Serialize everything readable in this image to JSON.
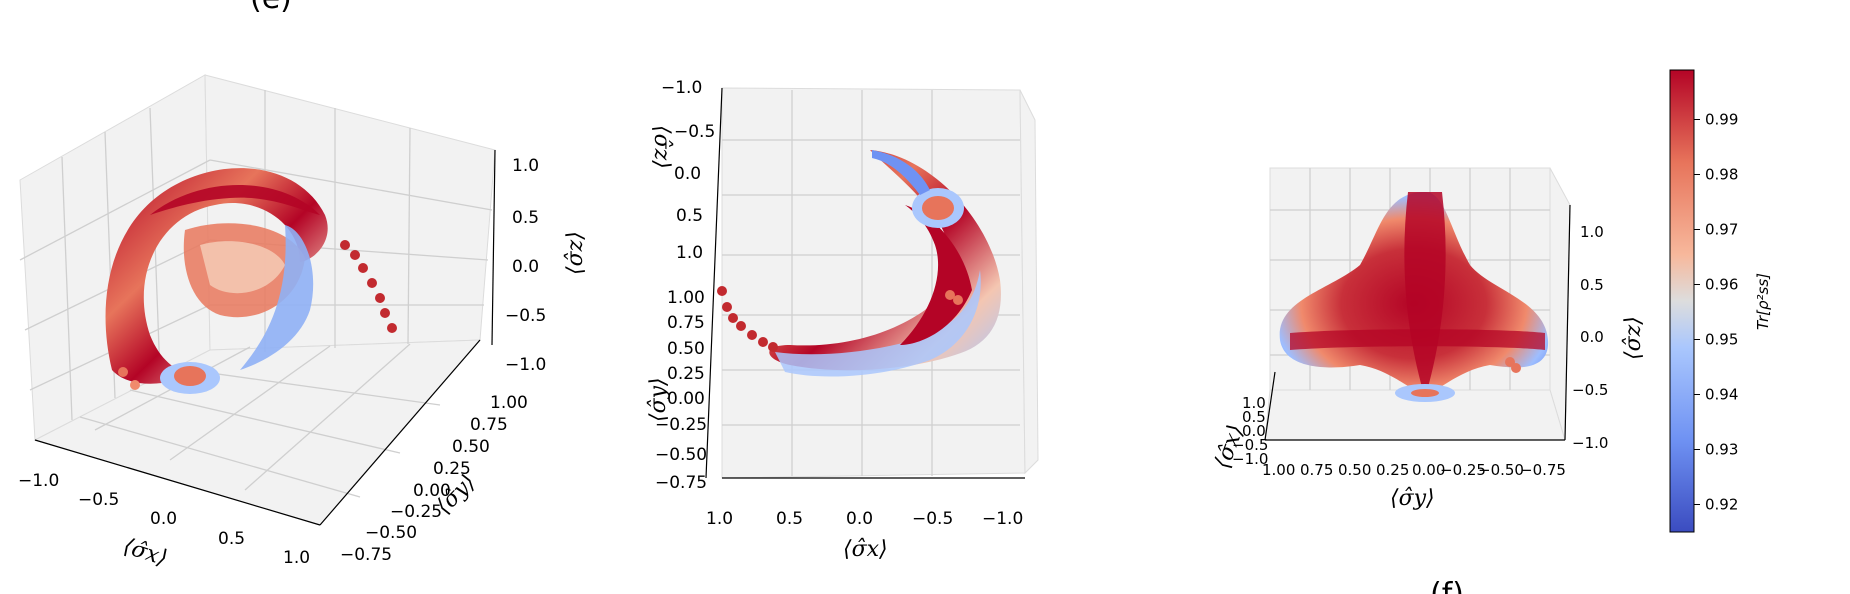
{
  "figure": {
    "panel_labels": [
      "(e)",
      "(f)"
    ]
  },
  "chart_data": [
    {
      "type": "scatter",
      "view": "3d-perspective",
      "xlabel": "⟨σ̂x⟩",
      "ylabel": "⟨σ̂y⟩",
      "zlabel": "⟨σ̂z⟩",
      "xticks": [
        "−1.0",
        "−0.5",
        "0.0",
        "0.5",
        "1.0"
      ],
      "yticks": [
        "1.00",
        "0.75",
        "0.50",
        "0.25",
        "0.00",
        "−0.25",
        "−0.50",
        "−0.75"
      ],
      "zticks": [
        "1.0",
        "0.5",
        "0.0",
        "−0.5",
        "−1.0"
      ],
      "xlim": [
        -1.0,
        1.0
      ],
      "ylim": [
        -0.75,
        1.0
      ],
      "zlim": [
        -1.0,
        1.0
      ],
      "grid": true
    },
    {
      "type": "scatter",
      "view": "3d-top",
      "xlabel": "⟨σ̂x⟩",
      "ylabel": "⟨σ̂y⟩",
      "zlabel": "⟨σ̂z⟩",
      "xticks": [
        "1.0",
        "0.5",
        "0.0",
        "−0.5",
        "−1.0"
      ],
      "yticks": [
        "1.00",
        "0.75",
        "0.50",
        "0.25",
        "0.00",
        "−0.25",
        "−0.50",
        "−0.75"
      ],
      "zticks": [
        "−1.0",
        "−0.5",
        "0.0",
        "0.5",
        "1.0"
      ],
      "grid": true
    },
    {
      "type": "scatter",
      "view": "3d-side",
      "xlabel": "⟨σ̂x⟩",
      "ylabel": "⟨σ̂y⟩",
      "zlabel": "⟨σ̂z⟩",
      "xticks": [
        "1.0",
        "0.5",
        "0.0",
        "−0.5",
        "−1.0"
      ],
      "yticks": [
        "1.00",
        "0.75",
        "0.50",
        "0.25",
        "0.00",
        "−0.25",
        "−0.50",
        "−0.75"
      ],
      "zticks": [
        "1.0",
        "0.5",
        "0.0",
        "−0.5",
        "−1.0"
      ],
      "grid": true
    }
  ],
  "colorbar": {
    "label": "Tr[ρ²ss]",
    "range": [
      0.915,
      0.999
    ],
    "ticks": [
      "0.99",
      "0.98",
      "0.97",
      "0.96",
      "0.95",
      "0.94",
      "0.93",
      "0.92"
    ],
    "tick_values": [
      0.99,
      0.98,
      0.97,
      0.96,
      0.95,
      0.94,
      0.93,
      0.92
    ],
    "colormap": "coolwarm",
    "colors": {
      "low": "#3b4cc0",
      "mid": "#dddddd",
      "high": "#b40426"
    }
  }
}
